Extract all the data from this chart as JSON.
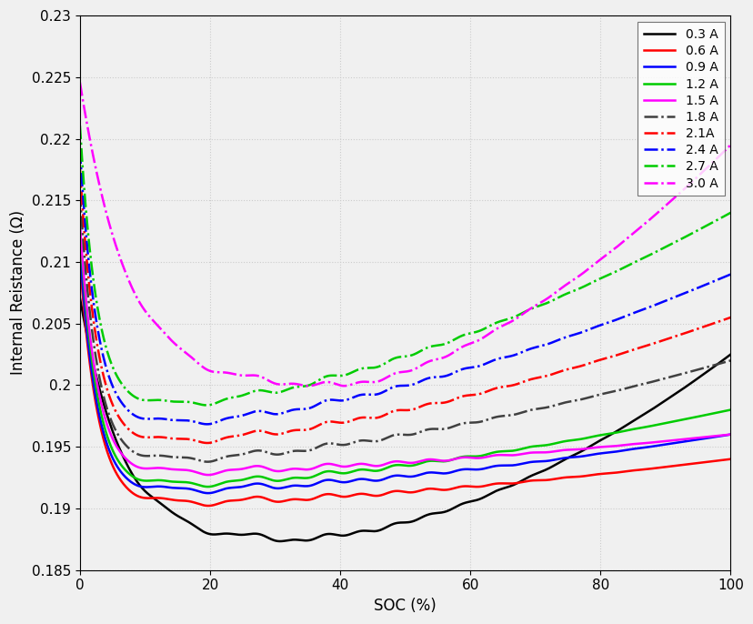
{
  "title": "",
  "xlabel": "SOC (%)",
  "ylabel": "Internal Reistance (Ω)",
  "xlim": [
    0,
    100
  ],
  "ylim": [
    0.185,
    0.23
  ],
  "yticks": [
    0.185,
    0.19,
    0.195,
    0.2,
    0.205,
    0.21,
    0.215,
    0.22,
    0.225,
    0.23
  ],
  "xticks": [
    0,
    20,
    40,
    60,
    80,
    100
  ],
  "series": [
    {
      "label": "0.3 A",
      "color": "#000000",
      "linestyle": "-",
      "lw": 1.8,
      "v0": 0.207,
      "vmin": 0.1875,
      "smin": 32,
      "v100": 0.2025,
      "decay": 5.0,
      "power": 1.8
    },
    {
      "label": "0.6 A",
      "color": "#ff0000",
      "linestyle": "-",
      "lw": 1.8,
      "v0": 0.21,
      "vmin": 0.1905,
      "smin": 15,
      "v100": 0.194,
      "decay": 5.5,
      "power": 1.6
    },
    {
      "label": "0.9 A",
      "color": "#0000ff",
      "linestyle": "-",
      "lw": 1.8,
      "v0": 0.211,
      "vmin": 0.1915,
      "smin": 14,
      "v100": 0.196,
      "decay": 5.5,
      "power": 1.6
    },
    {
      "label": "1.2 A",
      "color": "#00cc00",
      "linestyle": "-",
      "lw": 1.8,
      "v0": 0.2125,
      "vmin": 0.192,
      "smin": 14,
      "v100": 0.198,
      "decay": 5.5,
      "power": 1.6
    },
    {
      "label": "1.5 A",
      "color": "#ff00ff",
      "linestyle": "-",
      "lw": 1.8,
      "v0": 0.213,
      "vmin": 0.193,
      "smin": 14,
      "v100": 0.196,
      "decay": 5.5,
      "power": 1.6
    },
    {
      "label": "1.8 A",
      "color": "#404040",
      "linestyle": "-.",
      "lw": 1.8,
      "v0": 0.2155,
      "vmin": 0.194,
      "smin": 14,
      "v100": 0.202,
      "decay": 5.5,
      "power": 1.6
    },
    {
      "label": "2.1A",
      "color": "#ff0000",
      "linestyle": "-.",
      "lw": 1.8,
      "v0": 0.2175,
      "vmin": 0.1955,
      "smin": 14,
      "v100": 0.2055,
      "decay": 5.5,
      "power": 1.6
    },
    {
      "label": "2.4 A",
      "color": "#0000ff",
      "linestyle": "-.",
      "lw": 1.8,
      "v0": 0.219,
      "vmin": 0.197,
      "smin": 14,
      "v100": 0.209,
      "decay": 5.5,
      "power": 1.6
    },
    {
      "label": "2.7 A",
      "color": "#00cc00",
      "linestyle": "-.",
      "lw": 1.8,
      "v0": 0.221,
      "vmin": 0.1985,
      "smin": 14,
      "v100": 0.214,
      "decay": 5.5,
      "power": 1.6
    },
    {
      "label": "3.0 A",
      "color": "#ff00ff",
      "linestyle": "-.",
      "lw": 1.8,
      "v0": 0.2245,
      "vmin": 0.2,
      "smin": 40,
      "v100": 0.2195,
      "decay": 5.5,
      "power": 1.6
    }
  ],
  "background_color": "#f0f0f0",
  "grid_color": "#cccccc",
  "legend_loc": "upper right",
  "figsize": [
    8.29,
    6.86
  ],
  "dpi": 100
}
